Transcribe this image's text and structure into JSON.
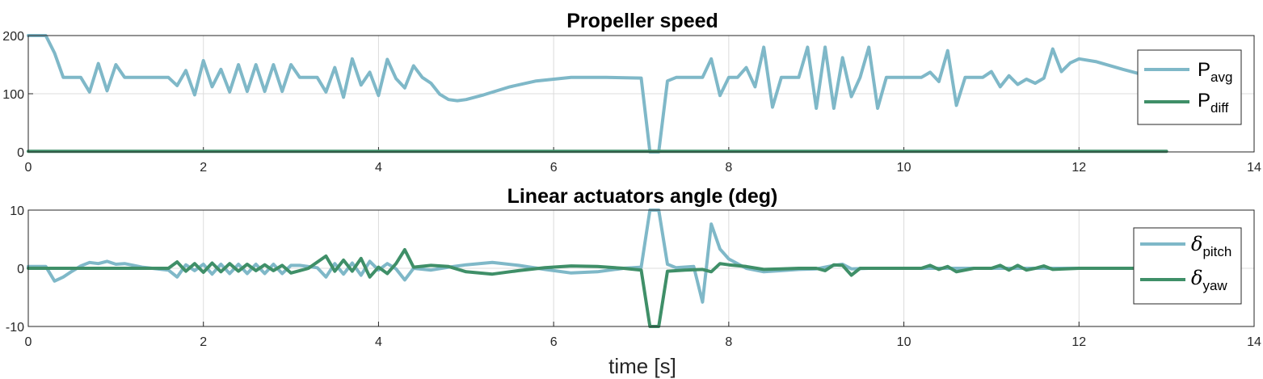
{
  "colors": {
    "light": "#7fb8c8",
    "dark": "#3f8f68",
    "axis": "#262626",
    "grid": "#dcdcdc"
  },
  "chart_data": [
    {
      "type": "line",
      "title": "Propeller speed",
      "xlim": [
        0,
        14
      ],
      "ylim": [
        0,
        200
      ],
      "xticks": [
        0,
        2,
        4,
        6,
        8,
        10,
        12,
        14
      ],
      "yticks": [
        0,
        100,
        200
      ],
      "grid": true,
      "legend_position": "right",
      "series": [
        {
          "name": "P",
          "subscript": "avg",
          "color": "#7fb8c8",
          "x": [
            0,
            0.2,
            0.3,
            0.4,
            0.6,
            0.7,
            0.8,
            0.9,
            1.0,
            1.1,
            1.3,
            1.6,
            1.7,
            1.8,
            1.9,
            2.0,
            2.1,
            2.2,
            2.3,
            2.4,
            2.5,
            2.6,
            2.7,
            2.8,
            2.9,
            3.0,
            3.1,
            3.3,
            3.4,
            3.5,
            3.6,
            3.7,
            3.8,
            3.9,
            4.0,
            4.1,
            4.2,
            4.3,
            4.4,
            4.5,
            4.6,
            4.7,
            4.8,
            4.9,
            5.0,
            5.2,
            5.5,
            5.8,
            6.2,
            6.6,
            7.0,
            7.1,
            7.2,
            7.3,
            7.4,
            7.6,
            7.7,
            7.8,
            7.9,
            8.0,
            8.1,
            8.2,
            8.3,
            8.4,
            8.5,
            8.6,
            8.7,
            8.8,
            8.9,
            9.0,
            9.1,
            9.2,
            9.3,
            9.4,
            9.5,
            9.6,
            9.7,
            9.8,
            10.0,
            10.2,
            10.3,
            10.4,
            10.5,
            10.6,
            10.7,
            10.9,
            11.0,
            11.1,
            11.2,
            11.3,
            11.4,
            11.5,
            11.6,
            11.7,
            11.8,
            11.9,
            12.0,
            12.2,
            12.5,
            12.8,
            13.0
          ],
          "y": [
            200,
            200,
            170,
            128,
            128,
            103,
            152,
            105,
            150,
            128,
            128,
            128,
            114,
            140,
            98,
            157,
            112,
            142,
            103,
            150,
            104,
            150,
            104,
            150,
            104,
            150,
            128,
            128,
            103,
            145,
            94,
            160,
            115,
            137,
            97,
            159,
            126,
            110,
            148,
            128,
            118,
            99,
            90,
            88,
            90,
            98,
            112,
            122,
            128,
            128,
            127,
            0,
            0,
            122,
            128,
            128,
            128,
            160,
            97,
            128,
            128,
            145,
            112,
            180,
            77,
            128,
            128,
            128,
            180,
            75,
            180,
            75,
            162,
            95,
            128,
            180,
            75,
            128,
            128,
            128,
            137,
            121,
            174,
            80,
            128,
            128,
            138,
            112,
            131,
            116,
            125,
            118,
            127,
            177,
            138,
            153,
            160,
            155,
            142,
            130,
            127
          ]
        },
        {
          "name": "P",
          "subscript": "diff",
          "color": "#3f8f68",
          "x": [
            0,
            13
          ],
          "y": [
            1,
            1
          ]
        }
      ],
      "xlabel": ""
    },
    {
      "type": "line",
      "title": "Linear actuators angle (deg)",
      "xlim": [
        0,
        14
      ],
      "ylim": [
        -10,
        10
      ],
      "xticks": [
        0,
        2,
        4,
        6,
        8,
        10,
        12,
        14
      ],
      "yticks": [
        -10,
        0,
        10
      ],
      "grid": true,
      "legend_position": "right",
      "xlabel": "time [s]",
      "series": [
        {
          "name": "δ",
          "subscript": "pitch",
          "color": "#7fb8c8",
          "x": [
            0,
            0.2,
            0.3,
            0.4,
            0.5,
            0.6,
            0.7,
            0.8,
            0.9,
            1.0,
            1.1,
            1.3,
            1.6,
            1.7,
            1.8,
            1.9,
            2.0,
            2.1,
            2.2,
            2.3,
            2.4,
            2.5,
            2.6,
            2.7,
            2.8,
            2.9,
            3.0,
            3.1,
            3.3,
            3.4,
            3.5,
            3.6,
            3.7,
            3.8,
            3.9,
            4.0,
            4.1,
            4.2,
            4.3,
            4.4,
            4.6,
            4.8,
            5.0,
            5.3,
            5.6,
            5.9,
            6.2,
            6.5,
            6.8,
            7.0,
            7.1,
            7.2,
            7.3,
            7.4,
            7.6,
            7.7,
            7.8,
            7.9,
            8.0,
            8.2,
            8.4,
            8.6,
            8.8,
            9.0,
            9.1,
            9.2,
            9.3,
            9.4,
            9.6,
            10.0,
            10.5,
            11.0,
            11.5,
            12.0,
            12.5,
            13.0
          ],
          "y": [
            0.3,
            0.3,
            -2.2,
            -1.5,
            -0.5,
            0.4,
            1.0,
            0.8,
            1.2,
            0.7,
            0.8,
            0.2,
            -0.3,
            -1.5,
            0.6,
            -0.4,
            0.7,
            -1.0,
            0.7,
            -0.9,
            0.7,
            -0.9,
            0.7,
            -0.9,
            0.7,
            -0.9,
            0.5,
            0.5,
            0.1,
            -1.5,
            0.8,
            -1.0,
            0.9,
            -1.2,
            1.2,
            -0.3,
            0.8,
            -0.1,
            -2.0,
            0.0,
            -0.3,
            0.2,
            0.6,
            1.0,
            0.5,
            -0.2,
            -0.8,
            -0.6,
            0.0,
            0.2,
            10.0,
            10.0,
            0.7,
            0.1,
            0.3,
            -5.8,
            7.6,
            3.3,
            1.6,
            0.0,
            -0.6,
            -0.4,
            -0.2,
            -0.1,
            0.2,
            0.5,
            0.7,
            -0.1,
            0.0,
            0.0,
            0.0,
            0.0,
            0.0,
            0.0,
            0.0,
            0.0
          ]
        },
        {
          "name": "δ",
          "subscript": "yaw",
          "color": "#3f8f68",
          "x": [
            0,
            0.2,
            0.4,
            0.6,
            0.8,
            1.0,
            1.3,
            1.6,
            1.7,
            1.8,
            1.9,
            2.0,
            2.1,
            2.2,
            2.3,
            2.4,
            2.5,
            2.6,
            2.7,
            2.8,
            2.9,
            3.0,
            3.1,
            3.2,
            3.4,
            3.5,
            3.6,
            3.7,
            3.8,
            3.9,
            4.0,
            4.1,
            4.2,
            4.3,
            4.4,
            4.6,
            4.8,
            5.0,
            5.3,
            5.6,
            5.9,
            6.2,
            6.5,
            6.8,
            7.0,
            7.1,
            7.2,
            7.3,
            7.5,
            7.7,
            7.8,
            7.9,
            8.0,
            8.2,
            8.4,
            8.6,
            8.8,
            9.0,
            9.1,
            9.2,
            9.3,
            9.4,
            9.5,
            9.8,
            10.2,
            10.3,
            10.4,
            10.5,
            10.6,
            10.8,
            11.0,
            11.1,
            11.2,
            11.3,
            11.4,
            11.5,
            11.6,
            11.7,
            12.0,
            12.5,
            13.0
          ],
          "y": [
            0.0,
            0.0,
            0.0,
            0.0,
            0.0,
            0.0,
            0.0,
            0.0,
            1.1,
            -0.5,
            0.8,
            -0.7,
            0.9,
            -0.6,
            0.8,
            -0.5,
            0.7,
            -0.4,
            0.6,
            -0.4,
            0.5,
            -0.8,
            -0.4,
            0.0,
            2.1,
            -0.5,
            1.4,
            -0.5,
            1.7,
            -1.5,
            0.2,
            -0.9,
            0.8,
            3.2,
            0.2,
            0.5,
            0.3,
            -0.6,
            -1.0,
            -0.4,
            0.1,
            0.4,
            0.3,
            0.0,
            -0.3,
            -10.0,
            -10.0,
            -0.5,
            -0.3,
            -0.2,
            -0.6,
            0.8,
            0.6,
            0.3,
            -0.2,
            -0.1,
            0.0,
            0.0,
            -0.4,
            0.6,
            0.5,
            -1.2,
            0.0,
            0.0,
            0.0,
            0.5,
            -0.2,
            0.3,
            -0.6,
            0.0,
            0.0,
            0.5,
            -0.3,
            0.5,
            -0.3,
            0.0,
            0.4,
            -0.2,
            0.0,
            0.0,
            0.0
          ]
        }
      ]
    }
  ]
}
